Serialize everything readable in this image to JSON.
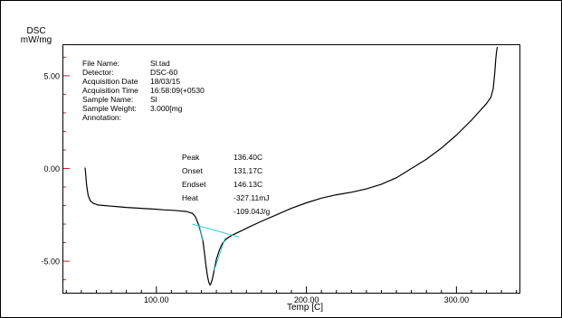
{
  "chart_data": {
    "type": "line",
    "ylabel_line1": "DSC",
    "ylabel_line2": "mW/mg",
    "xlabel": "Temp [C]",
    "xlim": [
      38,
      342
    ],
    "ylim": [
      -6.7,
      6.65
    ],
    "xticks": [
      {
        "v": 100,
        "label": "100.00"
      },
      {
        "v": 200,
        "label": "200.00"
      },
      {
        "v": 300,
        "label": "300.00"
      }
    ],
    "yticks": [
      {
        "v": 5,
        "label": "5.00"
      },
      {
        "v": 0,
        "label": "0.00"
      },
      {
        "v": -5,
        "label": "-5.00"
      }
    ],
    "info": [
      {
        "key": "File Name:",
        "value": "Sl.tad"
      },
      {
        "key": "Detector:",
        "value": "DSC-60"
      },
      {
        "key": "Acquisition Date",
        "value": "18/03/15"
      },
      {
        "key": "Acquisition Time",
        "value": "16:58:09(+0530"
      },
      {
        "key": "Sample Name:",
        "value": "Sl"
      },
      {
        "key": "Sample Weight:",
        "value": "3.000[mg"
      },
      {
        "key": "Annotation:",
        "value": ""
      }
    ],
    "results": [
      {
        "key": "Peak",
        "value": "136.40C"
      },
      {
        "key": "Onset",
        "value": "131.17C"
      },
      {
        "key": "Endset",
        "value": "146.13C"
      },
      {
        "key": "Heat",
        "value": "-327.11mJ"
      },
      {
        "key": "",
        "value": "-109.04J/g"
      }
    ],
    "series": [
      {
        "color": "#000000",
        "x": [
          52.5,
          52.8,
          53.5,
          54.5,
          56,
          58,
          61,
          65,
          70,
          80,
          90,
          100,
          105,
          110,
          115,
          120,
          124,
          126,
          128,
          129.5,
          131,
          132,
          133,
          134,
          135,
          135.8,
          136.4,
          137.2,
          138.5,
          140,
          142,
          144,
          146,
          148,
          150,
          153,
          157,
          162,
          170,
          180,
          190,
          200,
          210,
          220,
          230,
          240,
          250,
          260,
          270,
          280,
          290,
          300,
          310,
          315,
          320,
          323,
          324.5,
          325.5,
          326.2,
          326.8,
          327.2
        ],
        "y": [
          0.05,
          -0.2,
          -0.9,
          -1.45,
          -1.75,
          -1.88,
          -1.97,
          -2.0,
          -2.03,
          -2.1,
          -2.15,
          -2.2,
          -2.23,
          -2.25,
          -2.28,
          -2.32,
          -2.42,
          -2.6,
          -3.0,
          -3.4,
          -3.9,
          -4.5,
          -5.2,
          -5.8,
          -6.15,
          -6.28,
          -6.2,
          -6.0,
          -5.5,
          -4.9,
          -4.4,
          -4.05,
          -3.85,
          -3.72,
          -3.62,
          -3.5,
          -3.35,
          -3.15,
          -2.85,
          -2.5,
          -2.15,
          -1.85,
          -1.6,
          -1.42,
          -1.28,
          -1.1,
          -0.85,
          -0.5,
          0.0,
          0.5,
          1.1,
          1.8,
          2.6,
          3.05,
          3.5,
          3.85,
          4.3,
          5.1,
          5.9,
          6.35,
          6.55
        ]
      },
      {
        "color": "#33cccc",
        "x": [
          124,
          155
        ],
        "y": [
          -3.0,
          -3.7
        ]
      },
      {
        "color": "#33cccc",
        "x": [
          128.5,
          131.2
        ],
        "y": [
          -3.0,
          -3.9
        ]
      },
      {
        "color": "#33cccc",
        "x": [
          138.5,
          146.1
        ],
        "y": [
          -5.5,
          -3.7
        ]
      }
    ]
  }
}
